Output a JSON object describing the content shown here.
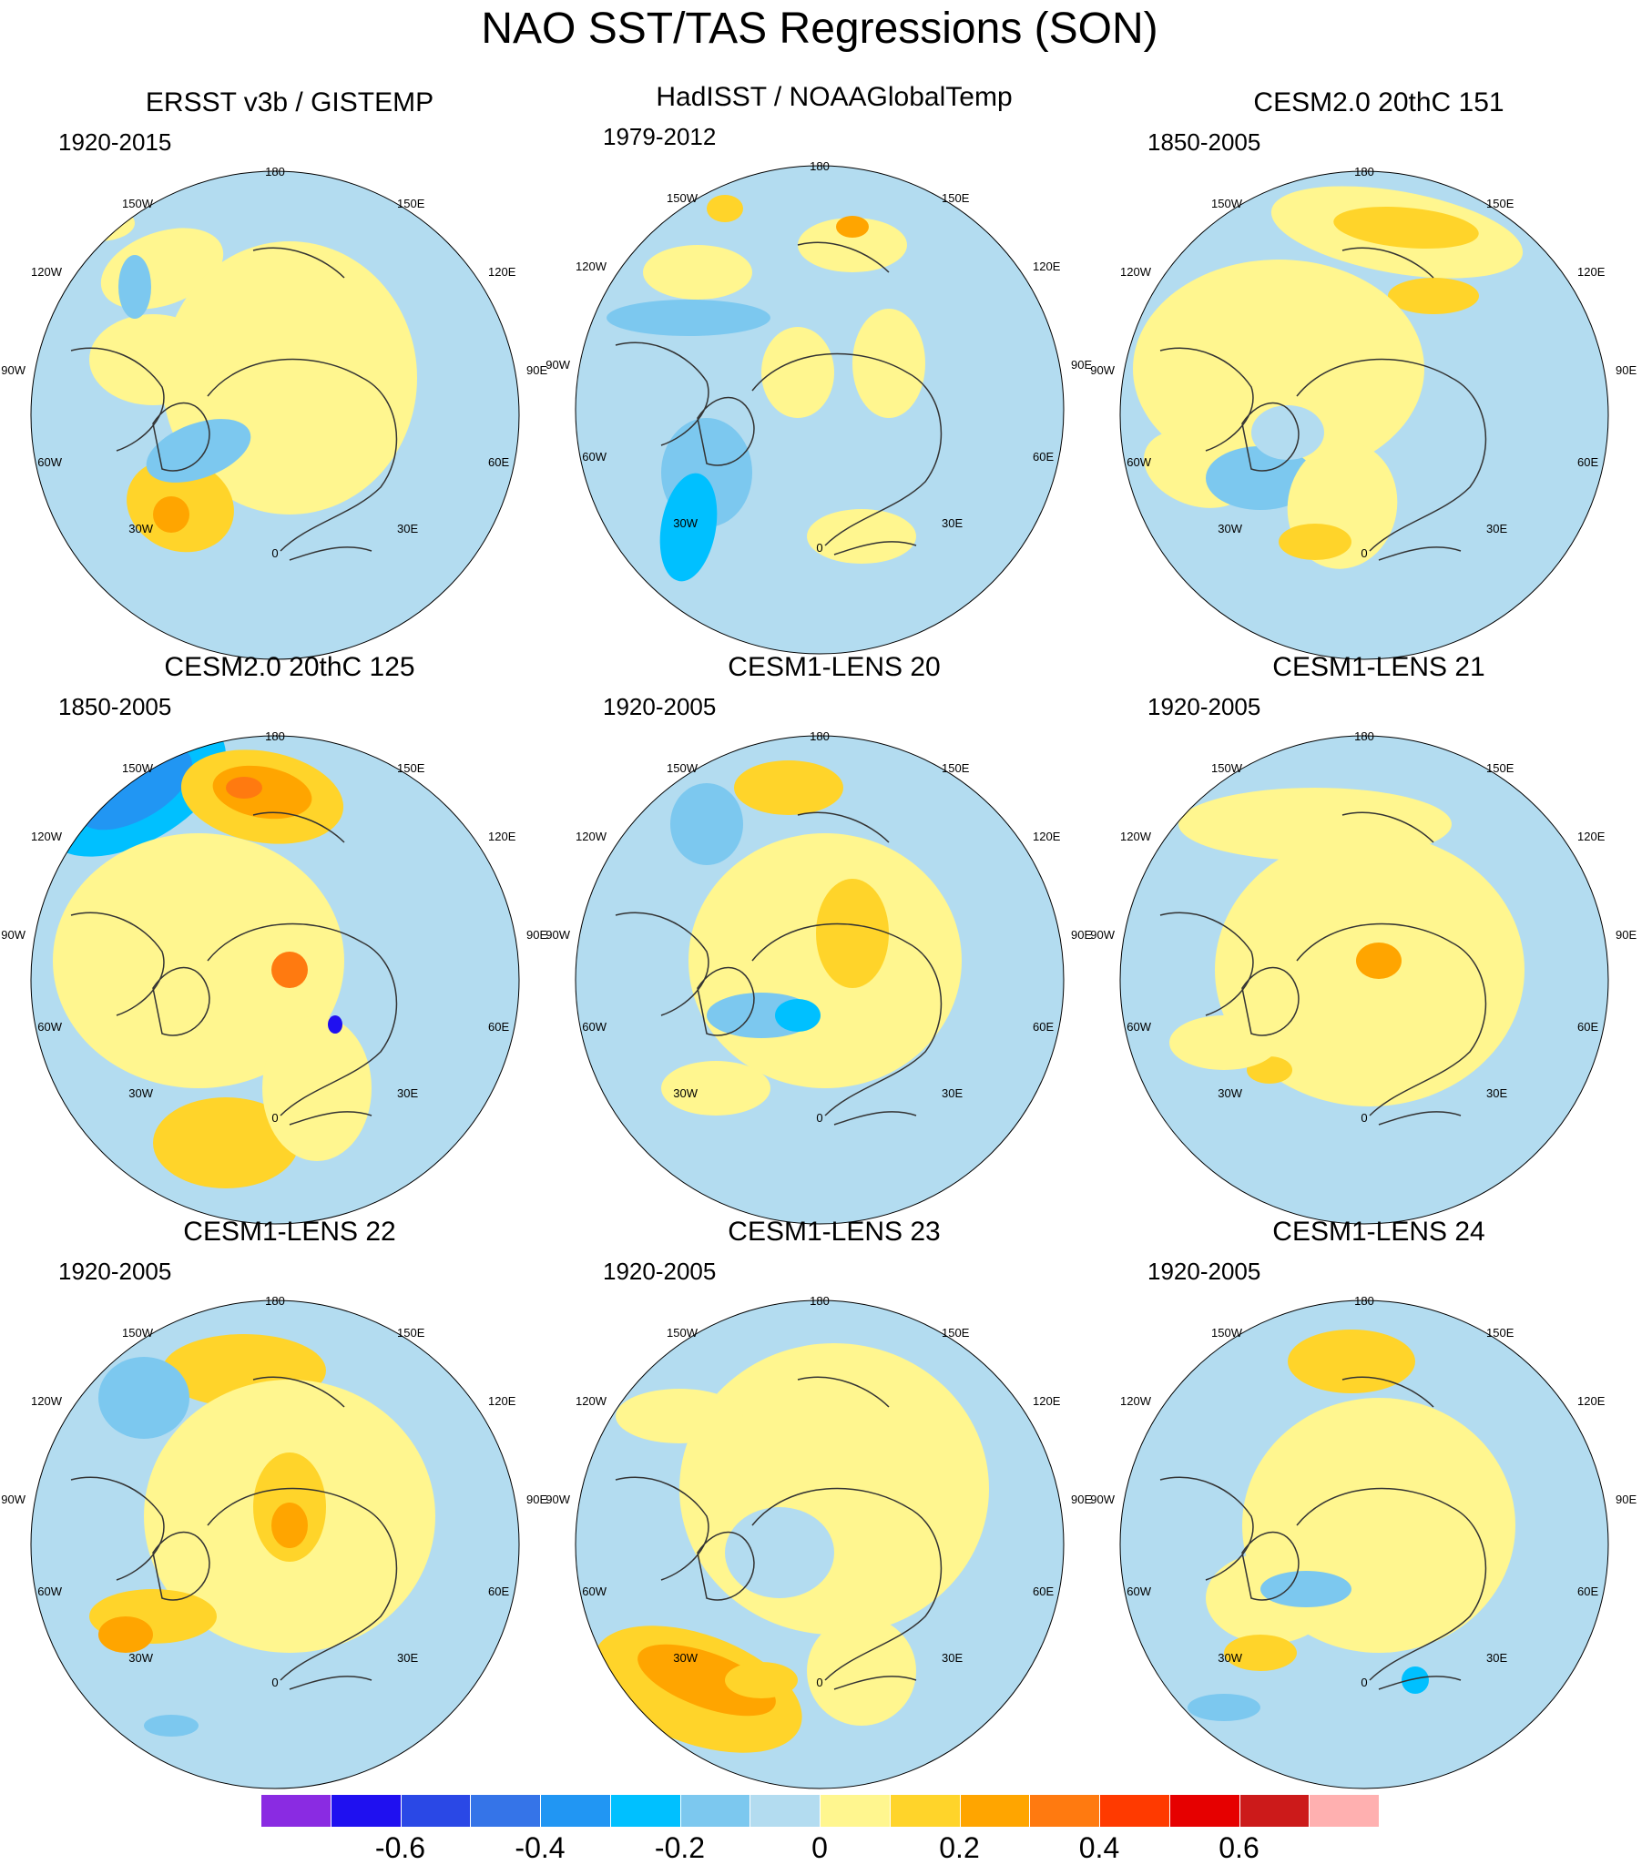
{
  "title": "NAO SST/TAS Regressions (SON)",
  "colors": {
    "land_outline": "#ffffff",
    "coast": "#333333",
    "levels": [
      "#8a2be2",
      "#1f10f0",
      "#2a48e6",
      "#3574e8",
      "#2196f3",
      "#00c0ff",
      "#7cc8ef",
      "#b3dcf0",
      "#fff68f",
      "#ffd42a",
      "#ffa500",
      "#ff7a10",
      "#ff3a00",
      "#e60000",
      "#cc1a1a",
      "#ffb0b0"
    ]
  },
  "colorbar": {
    "labels": [
      "-0.6",
      "-0.4",
      "-0.2",
      "0",
      "0.2",
      "0.4",
      "0.6"
    ],
    "label_box_boundaries": [
      2,
      4,
      6,
      8,
      10,
      12,
      14
    ]
  },
  "longitude_labels": [
    "180",
    "150E",
    "120E",
    "90E",
    "60E",
    "30E",
    "0",
    "30W",
    "60W",
    "90W",
    "120W",
    "150W"
  ],
  "panels": [
    {
      "title": "ERSST v3b / GISTEMP",
      "period": "1920-2015",
      "pattern": "ersst"
    },
    {
      "title": "HadISST / NOAAGlobalTemp",
      "period": "1979-2012",
      "pattern": "hadisst"
    },
    {
      "title": "CESM2.0 20thC 151",
      "period": "1850-2005",
      "pattern": "c151"
    },
    {
      "title": "CESM2.0 20thC 125",
      "period": "1850-2005",
      "pattern": "c125"
    },
    {
      "title": "CESM1-LENS 20",
      "period": "1920-2005",
      "pattern": "l20"
    },
    {
      "title": "CESM1-LENS 21",
      "period": "1920-2005",
      "pattern": "l21"
    },
    {
      "title": "CESM1-LENS 22",
      "period": "1920-2005",
      "pattern": "l22"
    },
    {
      "title": "CESM1-LENS 23",
      "period": "1920-2005",
      "pattern": "l23"
    },
    {
      "title": "CESM1-LENS 24",
      "period": "1920-2005",
      "pattern": "l24"
    }
  ]
}
